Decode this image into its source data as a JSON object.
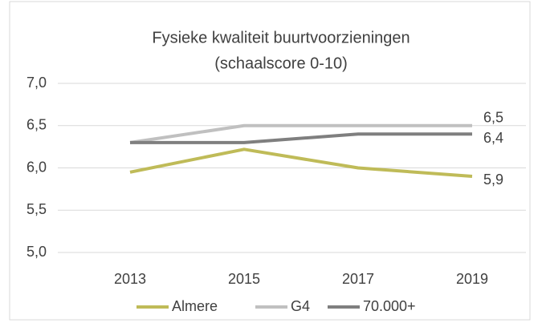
{
  "chart_data": {
    "type": "line",
    "title": "Fysieke kwaliteit buurtvoorzieningen",
    "subtitle": "(schaalscore 0-10)",
    "categories": [
      "2013",
      "2015",
      "2017",
      "2019"
    ],
    "series": [
      {
        "name": "Almere",
        "color": "#bfbb58",
        "values": [
          5.95,
          6.22,
          6.0,
          5.9
        ],
        "value_labels": [
          null,
          null,
          null,
          "5,9"
        ]
      },
      {
        "name": "G4",
        "color": "#c0c0c0",
        "values": [
          6.3,
          6.5,
          6.5,
          6.5
        ],
        "value_labels": [
          null,
          null,
          null,
          "6,5"
        ]
      },
      {
        "name": "70.000+",
        "color": "#7f7f7f",
        "values": [
          6.3,
          6.3,
          6.4,
          6.4
        ],
        "value_labels": [
          null,
          null,
          null,
          "6,4"
        ]
      }
    ],
    "ylim": [
      5.0,
      7.0
    ],
    "yticks": [
      {
        "value": 5.0,
        "label": "5,0"
      },
      {
        "value": 5.5,
        "label": "5,5"
      },
      {
        "value": 6.0,
        "label": "6,0"
      },
      {
        "value": 6.5,
        "label": "6,5"
      },
      {
        "value": 7.0,
        "label": "7,0"
      }
    ],
    "grid": true,
    "legend": "bottom"
  }
}
